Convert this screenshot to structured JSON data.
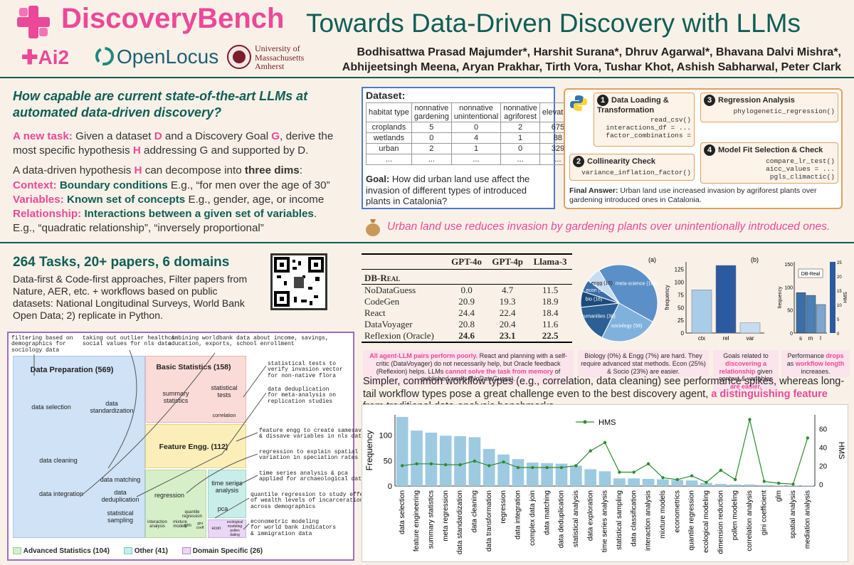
{
  "header": {
    "brand": "DiscoveryBench",
    "title": "Towards Data-Driven Discovery with LLMs",
    "logo_ai2": "Ai2",
    "logo_openlocus": "OpenLocus",
    "logo_umass": [
      "University of",
      "Massachusetts",
      "Amherst"
    ],
    "authors_line1": "Bodhisattwa Prasad Majumder*, Harshit Surana*, Dhruv Agarwal*, Bhavana Dalvi Mishra*,",
    "authors_line2": "Abhijeetsingh Meena, Aryan Prakhar, Tirth Vora, Tushar Khot, Ashish Sabharwal, Peter Clark"
  },
  "intro": {
    "question": "How capable are current state-of-the-art LLMs at automated data-driven discovery?",
    "task_label": "A new task:",
    "task_text_1": "Given a dataset ",
    "d": "D",
    "task_text_2": " and a Discovery Goal ",
    "g": "G",
    "task_text_3": ", derive the most specific hypothesis ",
    "h": "H",
    "task_text_4": " addressing G and supported by D.",
    "decomp_1": "A data-driven hypothesis ",
    "decomp_2": " can decompose into ",
    "decomp_3": "three dims",
    "decomp_4": ":",
    "context_label": "Context:",
    "context_bold": "Boundary conditions",
    "context_ex": " E.g., “for men over the age of 30”",
    "variables_label": "Variables:",
    "variables_bold": "Known set of concepts",
    "variables_ex": " E.g., gender, age, or income",
    "relationship_label": "Relationship:",
    "relationship_bold": "Interactions between a given set of variables",
    "relationship_ex": "E.g., “quadratic relationship”, “inversely proportional”"
  },
  "dataset": {
    "title": "Dataset:",
    "columns": [
      "habitat type",
      "nonnative gardening",
      "nonnative unintentional",
      "nonnative agriforest",
      "elevation",
      "..."
    ],
    "rows": [
      [
        "croplands",
        "5",
        "0",
        "2",
        "675",
        ""
      ],
      [
        "wetlands",
        "0",
        "4",
        "1",
        "88",
        ""
      ],
      [
        "urban",
        "2",
        "1",
        "0",
        "329",
        ""
      ],
      [
        "...",
        "...",
        "...",
        "...",
        "...",
        ""
      ]
    ],
    "goal_label": "Goal:",
    "goal_text": " How did urban land use affect the invasion of different types of introduced plants in Catalonia?"
  },
  "workflow": {
    "step1_title": "Data Loading & Transformation",
    "step1_code": [
      "read_csv()",
      "interactions_df = ...",
      "factor_combinations ="
    ],
    "step2_title": "Collinearity Check",
    "step2_code": [
      "variance_inflation_factor()"
    ],
    "step3_title": "Regression Analysis",
    "step3_code": [
      "phylogenetic_regression()"
    ],
    "step4_title": "Model Fit Selection & Check",
    "step4_code": [
      "compare_lr_test()",
      "aicc_values = ...",
      "pgls_climactic()"
    ],
    "final_label": "Final Answer:",
    "final_text": " Urban land use increased invasion by agriforest plants over gardening introduced ones in Catalonia."
  },
  "answer": "Urban land use reduces invasion by gardening plants over unintentionally introduced ones.",
  "tasks": {
    "heading": "264 Tasks, 20+ papers, 6 domains",
    "body": "Data-first & Code-first approaches, Filter papers from Nature, AER, etc. + workflows based on public datasets: National Longitudinal Surveys, World Bank Open Data; 2) replicate in Python."
  },
  "tree": {
    "data_prep": "Data Preparation (569)",
    "basic_stats": "Basic Statistics (158)",
    "feature_engg": "Feature Engg. (112)",
    "data_selection": "data selection",
    "data_standardization": "data standardization",
    "data_cleaning": "data cleaning",
    "data_matching": "data matching",
    "data_integration": "data integration",
    "data_deduplication": "data deduplication",
    "statistical_sampling": "statistical sampling",
    "summary_statistics": "summary statistics",
    "statistical_tests": "statistical tests",
    "correlation": "correlation",
    "regression": "regression",
    "time_series": "time series analysis",
    "pca": "pca",
    "interaction_analysis": "interaction analysis",
    "mixture_models": "mixture models",
    "quantile_regression": "quantile regression",
    "glm": "glm",
    "gini": "gini coeff",
    "spatial_analysis": "spatial analysis",
    "econ": "econ",
    "ecological_modeling": "ecological modeling",
    "pollen_dating": "pollen dating",
    "legend_adv": "Advanced Statistics (104)",
    "legend_other": "Other (41)",
    "legend_domain": "Domain Specific (26)",
    "ann1": "filtering based on\ndemographics for\nsociology data",
    "ann2": "taking out outlier health &\nsocial values for nls data",
    "ann3": "combining worldbank data about income, savings,\neducation, exports, school enrollment",
    "ann4": "statistical tests to\nverify invasion vector\nfor non-native flora",
    "ann5": "data deduplication\nfor meta-analysis on\nreplication studies",
    "ann6": "feature engg to create samesave\n& dissave variables in nls data",
    "ann7": "regression to explain spatial\nvariation in speciation rates",
    "ann8": "time series analysis & pca\napplied for archaeological data",
    "ann9": "quantile regression to study effect\nof wealth levels of incarceration\nacross demographics",
    "ann10": "econometric modeling\nfor world bank indicators\n& immigration data"
  },
  "results": {
    "columns": [
      "",
      "GPT-4o",
      "GPT-4p",
      "Llama-3"
    ],
    "section": "DB-Real",
    "rows": [
      [
        "NoDataGuess",
        "0.0",
        "4.7",
        "11.5"
      ],
      [
        "CodeGen",
        "20.9",
        "19.3",
        "18.9"
      ],
      [
        "React",
        "24.4",
        "22.4",
        "18.4"
      ],
      [
        "DataVoyager",
        "20.8",
        "20.4",
        "11.6"
      ],
      [
        "Reflexion (Oracle)",
        "24.6",
        "23.1",
        "22.5"
      ]
    ]
  },
  "notes": {
    "n1a": "All agent-LLM pairs perform poorly.",
    "n1b": " React and planning with a self-critic (DataVoyager) do not necessarily help, but Oracle feedback (Reflexion) helps. LLMs ",
    "n1c": "cannot solve the task from memory",
    "n1d": " of published works (NoDataGuess).",
    "n2": "Biology (0%) & Engg (7%) are hard. They require advanced stat methods. Econ (25%) & Socio (23%) are easier.",
    "n3a": "Goals related to ",
    "n3b": "discovering a relationship",
    "n3c": " given context & variables ",
    "n3d": "are easier.",
    "n4a": "Performance ",
    "n4b": "drops",
    "n4c": " as ",
    "n4d": "workflow length",
    "n4e": " increases."
  },
  "workflow_text_1": "Simpler, common workflow types (e.g., correlation, data cleaning) see performance spikes, whereas long-tail workflow types pose a great challenge even to the best discovery agent, ",
  "workflow_text_2": "a distinguishing feature",
  "workflow_text_3": " from traditional data-analysis benchmarks.",
  "colors": {
    "pink": "#ec4899",
    "teal": "#0f5e57",
    "bar": "#9ecae1",
    "line": "#2e8b2e"
  },
  "chart_data": [
    {
      "type": "pie",
      "label": "(a)",
      "categories": [
        "meta-science",
        "sociology",
        "humanities",
        "bio",
        "econ",
        "engg"
      ],
      "values": [
        100,
        58,
        38,
        16,
        12,
        15
      ]
    },
    {
      "type": "bar",
      "label": "(b)",
      "categories": [
        "ctx",
        "rel",
        "var"
      ],
      "values": [
        85,
        133,
        20
      ],
      "ylabel": "frequency",
      "ylim": [
        0,
        140
      ]
    },
    {
      "type": "bar",
      "categories": [
        "s",
        "m",
        "l"
      ],
      "values": [
        88,
        82,
        62
      ],
      "ylabel": "frequency",
      "y2label": "HMS",
      "legend": "DB-Real",
      "ylim": [
        0,
        155
      ],
      "y2lim": [
        0,
        25
      ]
    },
    {
      "type": "bar",
      "categories": [
        "data selection",
        "feature engineering",
        "summary statistics",
        "meta regression",
        "data standardization",
        "data cleaning",
        "data transformation",
        "regression",
        "data integration",
        "complex data join",
        "data matching",
        "data deduplication",
        "statistical analysis",
        "data exploration",
        "time series analysis",
        "statistical sampling",
        "data classification",
        "interaction analysis",
        "mixture models",
        "econometrics",
        "quantile regression",
        "ecological modeling",
        "dimension reduction",
        "pollen modeling",
        "correlation analysis",
        "gini coefficient",
        "glm",
        "spatial analysis",
        "mediation analysis"
      ],
      "values": [
        136,
        109,
        105,
        99,
        98,
        96,
        73,
        62,
        53,
        46,
        45,
        44,
        40,
        33,
        29,
        15,
        15,
        14,
        13,
        12,
        11,
        6,
        4,
        3,
        3,
        2,
        1,
        1,
        1
      ],
      "series": [
        {
          "name": "HMS",
          "values": [
            20,
            22,
            22,
            21,
            21,
            25,
            20,
            24,
            18,
            18,
            18,
            18,
            20,
            36,
            45,
            13,
            13,
            22,
            7,
            5,
            9,
            2,
            15,
            5,
            70,
            3,
            1,
            0,
            50
          ]
        }
      ],
      "ylabel": "Frequency",
      "y2label": "HMS",
      "ylim": [
        0,
        140
      ],
      "y2lim": [
        -2,
        75
      ]
    }
  ]
}
